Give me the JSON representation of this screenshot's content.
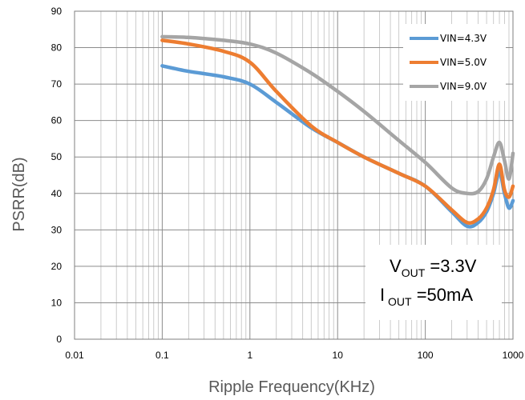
{
  "chart_data": {
    "type": "line",
    "xlabel": "Ripple Frequency(KHz)",
    "ylabel": "PSRR(dB)",
    "xscale": "log",
    "xlim": [
      0.01,
      1000
    ],
    "ylim": [
      0,
      90
    ],
    "xticks": [
      "0.01",
      "0.1",
      "1",
      "10",
      "100",
      "1000"
    ],
    "yticks": [
      "0",
      "10",
      "20",
      "30",
      "40",
      "50",
      "60",
      "70",
      "80",
      "90"
    ],
    "grid": true,
    "legend_position": "top-right",
    "series": [
      {
        "name": "VIN=4.3V",
        "color": "#5b9bd5",
        "x": [
          0.1,
          0.2,
          0.5,
          1,
          2,
          5,
          10,
          20,
          50,
          100,
          200,
          300,
          400,
          500,
          600,
          700,
          800,
          900,
          1000
        ],
        "y": [
          75,
          73.5,
          72,
          70,
          65,
          58,
          54,
          50,
          45.5,
          42,
          35,
          31,
          32,
          35,
          40,
          46,
          40,
          36,
          38
        ]
      },
      {
        "name": "VIN=5.0V",
        "color": "#ed7d31",
        "x": [
          0.1,
          0.2,
          0.5,
          1,
          2,
          5,
          10,
          20,
          50,
          100,
          200,
          300,
          400,
          500,
          600,
          700,
          800,
          900,
          1000
        ],
        "y": [
          82,
          81,
          79,
          76,
          68,
          58.5,
          54,
          50,
          45.5,
          42,
          35.5,
          32,
          33,
          36,
          41,
          48,
          41,
          39,
          42
        ]
      },
      {
        "name": "VIN=9.0V",
        "color": "#a5a5a5",
        "x": [
          0.1,
          0.2,
          0.5,
          1,
          2,
          5,
          10,
          20,
          50,
          100,
          200,
          300,
          400,
          500,
          600,
          700,
          800,
          900,
          1000
        ],
        "y": [
          83,
          82.8,
          82,
          81,
          78.5,
          73,
          68,
          62.5,
          54.5,
          48.5,
          41.5,
          40,
          40.5,
          44,
          50,
          54,
          49,
          44,
          51
        ]
      }
    ]
  },
  "annotation": {
    "line1_main": "V",
    "line1_sub": "OUT",
    "line1_rest": " =3.3V",
    "line2_main": "I",
    "line2_sub": " OUT",
    "line2_rest": " =50mA"
  }
}
